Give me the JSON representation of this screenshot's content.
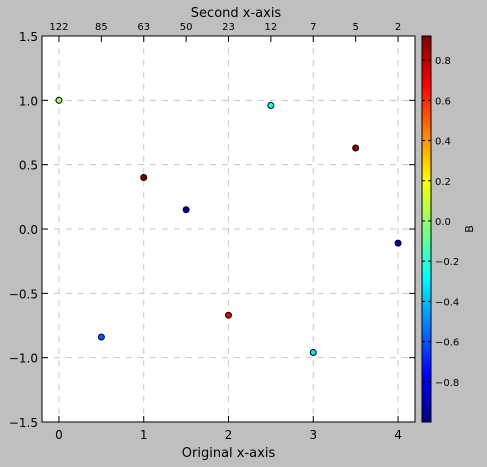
{
  "chart_data": {
    "type": "scatter",
    "title": "",
    "xlabel": "Original x-axis",
    "ylabel": "",
    "secondary_xlabel": "Second x-axis",
    "colorbar_label": "B",
    "xlim": [
      -0.2,
      4.2
    ],
    "ylim": [
      -1.5,
      1.5
    ],
    "x_ticks": [
      0,
      1,
      2,
      3,
      4
    ],
    "y_ticks": [
      -1.5,
      -1.0,
      -0.5,
      0.0,
      0.5,
      1.0,
      1.5
    ],
    "x_tick_labels": [
      "0",
      "1",
      "2",
      "3",
      "4"
    ],
    "y_tick_labels": [
      "−1.5",
      "−1.0",
      "−0.5",
      "0.0",
      "0.5",
      "1.0",
      "1.5"
    ],
    "secondary_x_ticks": [
      0,
      0.5,
      1,
      1.5,
      2,
      2.5,
      3,
      3.5,
      4
    ],
    "secondary_x_tick_labels": [
      "122",
      "85",
      "63",
      "50",
      "23",
      "12",
      "7",
      "5",
      "2"
    ],
    "colorbar_range": [
      -1.0,
      0.92
    ],
    "colorbar_ticks": [
      -0.8,
      -0.6,
      -0.4,
      -0.2,
      0.0,
      0.2,
      0.4,
      0.6,
      0.8
    ],
    "colorbar_tick_labels": [
      "−0.8",
      "−0.6",
      "−0.4",
      "−0.2",
      "0.0",
      "0.2",
      "0.4",
      "0.6",
      "0.8"
    ],
    "colormap": "jet",
    "grid": true,
    "points": [
      {
        "x": 0.0,
        "y": 1.0,
        "c": 0.0
      },
      {
        "x": 0.5,
        "y": -0.84,
        "c": -0.6
      },
      {
        "x": 1.0,
        "y": 0.4,
        "c": 0.92
      },
      {
        "x": 1.5,
        "y": 0.15,
        "c": -0.95
      },
      {
        "x": 2.0,
        "y": -0.67,
        "c": 0.74
      },
      {
        "x": 2.5,
        "y": 0.96,
        "c": -0.25
      },
      {
        "x": 3.0,
        "y": -0.96,
        "c": -0.33
      },
      {
        "x": 3.5,
        "y": 0.63,
        "c": 0.88
      },
      {
        "x": 4.0,
        "y": -0.11,
        "c": -0.9
      }
    ]
  }
}
